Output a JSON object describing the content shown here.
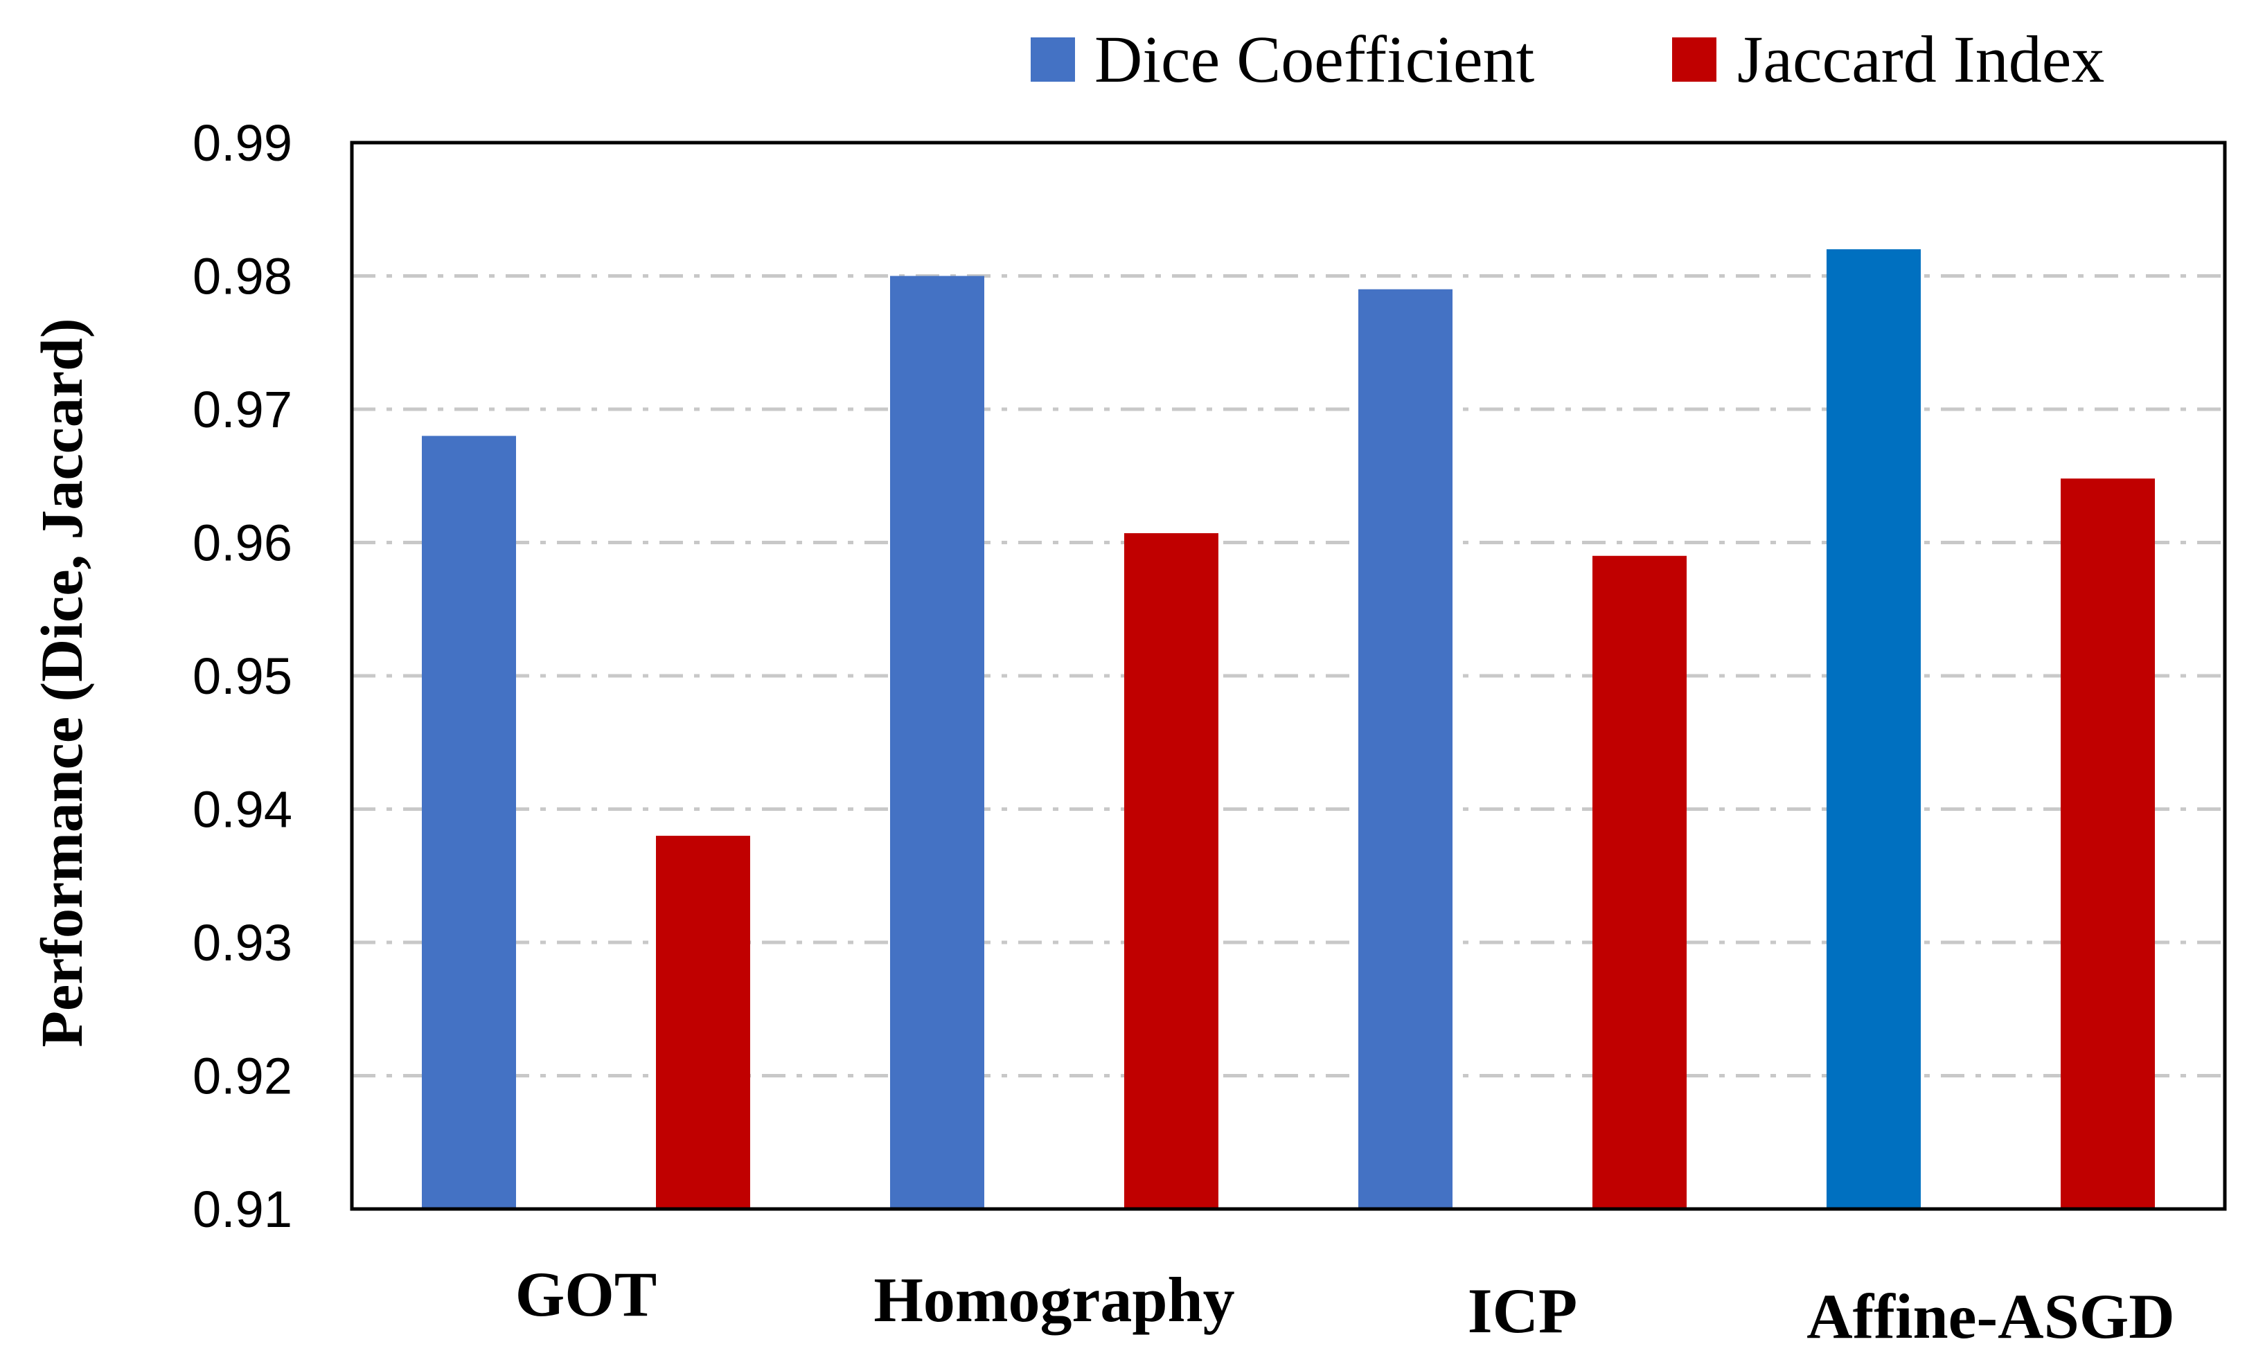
{
  "chart_data": {
    "type": "bar",
    "title": "",
    "xlabel": "",
    "ylabel": "Performance (Dice, Jaccard)",
    "ylim": [
      0.91,
      0.99
    ],
    "yticks": [
      "0.91",
      "0.92",
      "0.93",
      "0.94",
      "0.95",
      "0.96",
      "0.97",
      "0.98",
      "0.99"
    ],
    "grid": true,
    "legend_position": "top-right",
    "categories": [
      "GOT",
      "Homography",
      "ICP",
      "Affine-ASGD"
    ],
    "series": [
      {
        "name": "Dice Coefficient",
        "values": [
          0.968,
          0.98,
          0.979,
          0.982
        ],
        "color": "#4472C4",
        "highlight_color": "#0070C0"
      },
      {
        "name": "Jaccard Index",
        "values": [
          0.938,
          0.9607,
          0.959,
          0.9648
        ],
        "color": "#C00000"
      }
    ]
  }
}
